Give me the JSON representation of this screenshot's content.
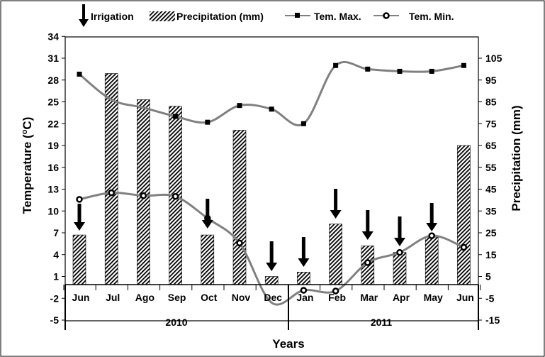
{
  "chart_data": {
    "type": "bar",
    "categories": [
      "Jun",
      "Jul",
      "Ago",
      "Sep",
      "Oct",
      "Nov",
      "Dec",
      "Jan",
      "Feb",
      "Mar",
      "Apr",
      "May",
      "Jun"
    ],
    "xlabel": "Years",
    "year_labels": [
      "2010",
      "2011"
    ],
    "left_axis": {
      "label_prefix": "Temperature (",
      "label_sup": "o",
      "label_suffix": "C)",
      "ticks": [
        34,
        31,
        28,
        25,
        22,
        19,
        16,
        13,
        10,
        7,
        4,
        1,
        -2,
        -5
      ],
      "range": [
        -5,
        34
      ]
    },
    "right_axis": {
      "label": "Precipitation (mm)",
      "ticks": [
        105,
        95,
        85,
        75,
        65,
        55,
        45,
        35,
        25,
        15,
        5,
        -5,
        -15
      ],
      "range": [
        -15,
        112
      ]
    },
    "legend": {
      "irrigation": "Irrigation",
      "precipitation": "Precipitation (mm)",
      "tmax": "Tem. Max.",
      "tmin": "Tem. Min."
    },
    "series": [
      {
        "name": "Precipitation (mm)",
        "axis": "right",
        "kind": "bar",
        "values": [
          24,
          98,
          86,
          83,
          24,
          72,
          5,
          7,
          29,
          19,
          16,
          23,
          65
        ]
      },
      {
        "name": "Tem. Max.",
        "axis": "left",
        "kind": "line",
        "values": [
          28.8,
          null,
          null,
          23.0,
          22.2,
          24.5,
          24.0,
          22.0,
          30.0,
          29.5,
          29.2,
          29.2,
          30.0
        ]
      },
      {
        "name": "Tem. Min.",
        "axis": "left",
        "kind": "line",
        "values": [
          11.6,
          12.5,
          12.1,
          12.0,
          9.0,
          5.6,
          null,
          -0.9,
          -1.0,
          2.9,
          4.3,
          6.6,
          5.0
        ]
      }
    ],
    "irrigation_months": [
      0,
      4,
      6,
      7,
      8,
      9,
      10,
      11
    ],
    "colors": {
      "line": "#808080",
      "bar_fill": "#000000",
      "arrow": "#000000"
    }
  }
}
